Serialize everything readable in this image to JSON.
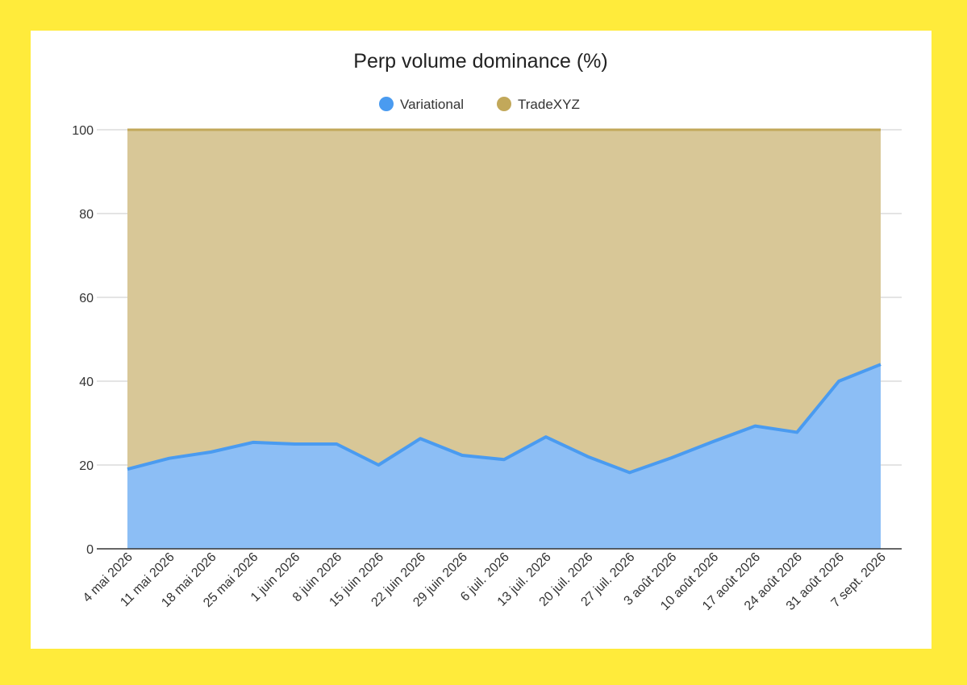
{
  "chart_data": {
    "type": "area",
    "stacked": true,
    "percent": true,
    "title": "Perp volume dominance (%)",
    "xlabel": "",
    "ylabel": "",
    "ylim": [
      0,
      100
    ],
    "yticks": [
      0,
      20,
      40,
      60,
      80,
      100
    ],
    "grid": true,
    "legend_position": "top-center",
    "categories": [
      "4 mai 2026",
      "11 mai 2026",
      "18 mai 2026",
      "25 mai 2026",
      "1 juin 2026",
      "8 juin 2026",
      "15 juin 2026",
      "22 juin 2026",
      "29 juin 2026",
      "6 juil. 2026",
      "13 juil. 2026",
      "20 juil. 2026",
      "27 juil. 2026",
      "3 août 2026",
      "10 août 2026",
      "17 août 2026",
      "24 août 2026",
      "31 août 2026",
      "7 sept. 2026"
    ],
    "series": [
      {
        "name": "Variational",
        "color": "#4A9BF0",
        "fill": "#8CBEF5",
        "values": [
          19,
          21.6,
          23.1,
          25.4,
          25.0,
          25.0,
          20.0,
          26.3,
          22.3,
          21.3,
          26.7,
          22.0,
          18.2,
          21.7,
          25.6,
          29.3,
          27.8,
          40.0,
          44.0
        ]
      },
      {
        "name": "TradeXYZ",
        "color": "#C2A85A",
        "fill": "#D8C797",
        "values": [
          81,
          78.4,
          76.9,
          74.6,
          75.0,
          75.0,
          80.0,
          73.7,
          77.7,
          78.7,
          73.3,
          78.0,
          81.8,
          78.3,
          74.4,
          70.7,
          72.2,
          60.0,
          56.0
        ]
      }
    ]
  }
}
